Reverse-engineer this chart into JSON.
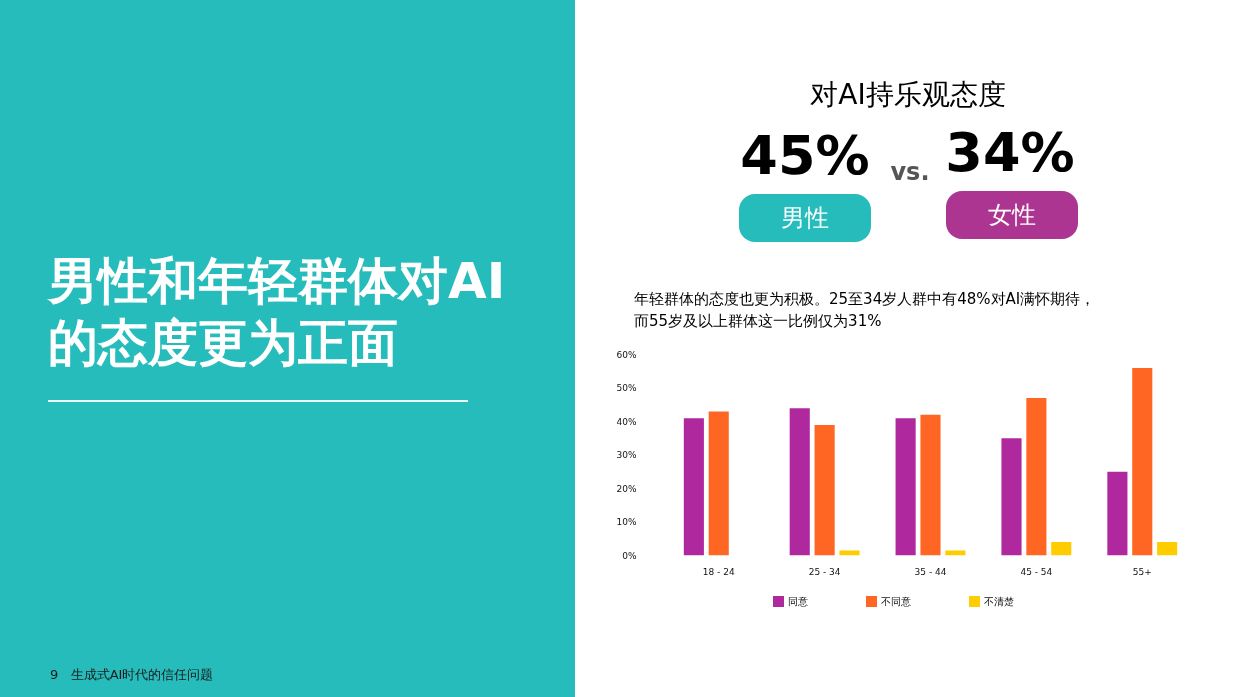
{
  "chart_data": {
    "type": "bar",
    "title": "男性和年轻群体对AI的态度更为正面",
    "subtitle": "年轻群体的态度也更为积极。25至34岁人群中有48%对AI满怀期待，而55岁及以上群体这一比例仅为31%",
    "annotations": [
      "对AI持乐观态度",
      "45%",
      "vs.",
      "34%",
      "男性",
      "女性",
      "9",
      "生成式AI时代的信任问题"
    ],
    "categories": [
      "18 - 24",
      "25 - 34",
      "35 - 44",
      "45 - 54",
      "55+"
    ],
    "series": [
      {
        "name": "同意",
        "color": "#b0289e",
        "values": [
          41,
          44,
          41,
          35,
          25
        ]
      },
      {
        "name": "不同意",
        "color": "#ff6624",
        "values": [
          43,
          39,
          42,
          47,
          56
        ]
      },
      {
        "name": "不清楚",
        "color": "#ffcc00",
        "values": [
          0,
          1.5,
          1.5,
          4,
          4
        ]
      }
    ],
    "ylim": [
      0,
      63
    ],
    "yticks": [
      {
        "value": 0,
        "label": "0%"
      },
      {
        "value": 10,
        "label": "10%"
      },
      {
        "value": 20,
        "label": "20%"
      },
      {
        "value": 30,
        "label": "30%"
      },
      {
        "value": 40,
        "label": "40%"
      },
      {
        "value": 50,
        "label": "50%"
      },
      {
        "value": 60,
        "label": "60%"
      }
    ],
    "grid": false,
    "legend": "bottom"
  }
}
